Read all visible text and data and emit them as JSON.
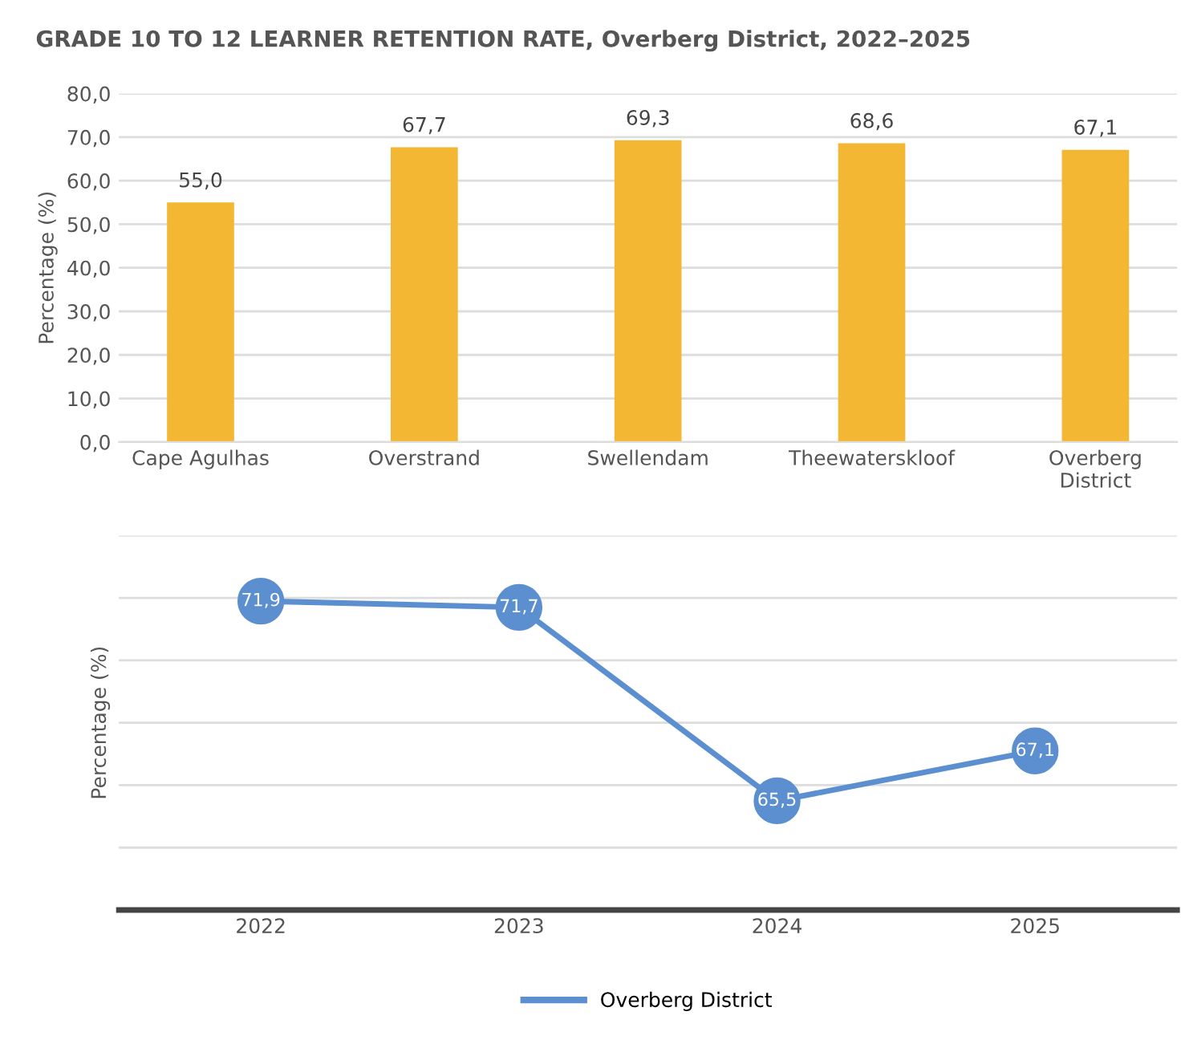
{
  "chart_data": [
    {
      "type": "bar",
      "title": "GRADE 10 TO 12 LEARNER RETENTION RATE, Overberg District, 2022–2025",
      "ylabel": "Percentage (%)",
      "categories": [
        "Cape Agulhas",
        "Overstrand",
        "Swellendam",
        "Theewaterskloof",
        "Overberg\nDistrict"
      ],
      "values": [
        55.0,
        67.7,
        69.3,
        68.6,
        67.1
      ],
      "color": "#f4b733",
      "value_labels": [
        "55,0",
        "67,7",
        "69,3",
        "68,6",
        "67,1"
      ],
      "ylim": [
        0,
        80
      ],
      "yticks": [
        {
          "value": 0,
          "label": "0,0"
        },
        {
          "value": 10,
          "label": "10,0"
        },
        {
          "value": 20,
          "label": "20,0"
        },
        {
          "value": 30,
          "label": "30,0"
        },
        {
          "value": 40,
          "label": "40,0"
        },
        {
          "value": 50,
          "label": "50,0"
        },
        {
          "value": 60,
          "label": "60,0"
        },
        {
          "value": 70,
          "label": "70,0"
        },
        {
          "value": 80,
          "label": "80,0"
        }
      ],
      "grid": "y"
    },
    {
      "type": "line",
      "ylabel": "Percentage (%)",
      "categories": [
        "2022",
        "2023",
        "2024",
        "2025"
      ],
      "series": [
        {
          "name": "Overberg District",
          "color": "#5b8fcf",
          "values": [
            71.9,
            71.7,
            65.5,
            67.1
          ],
          "value_labels": [
            "71,9",
            "71,7",
            "65,5",
            "67,1"
          ]
        }
      ],
      "ylim": [
        62,
        74
      ],
      "yticks": [
        {
          "value": 62,
          "label": null
        },
        {
          "value": 64,
          "label": null
        },
        {
          "value": 66,
          "label": null
        },
        {
          "value": 68,
          "label": null
        },
        {
          "value": 70,
          "label": null
        },
        {
          "value": 72,
          "label": null
        },
        {
          "value": 74,
          "label": null
        }
      ],
      "tick_labels": "x",
      "grid": "y",
      "marker": "circle",
      "line_style": "solid",
      "legend": "bottom"
    }
  ]
}
